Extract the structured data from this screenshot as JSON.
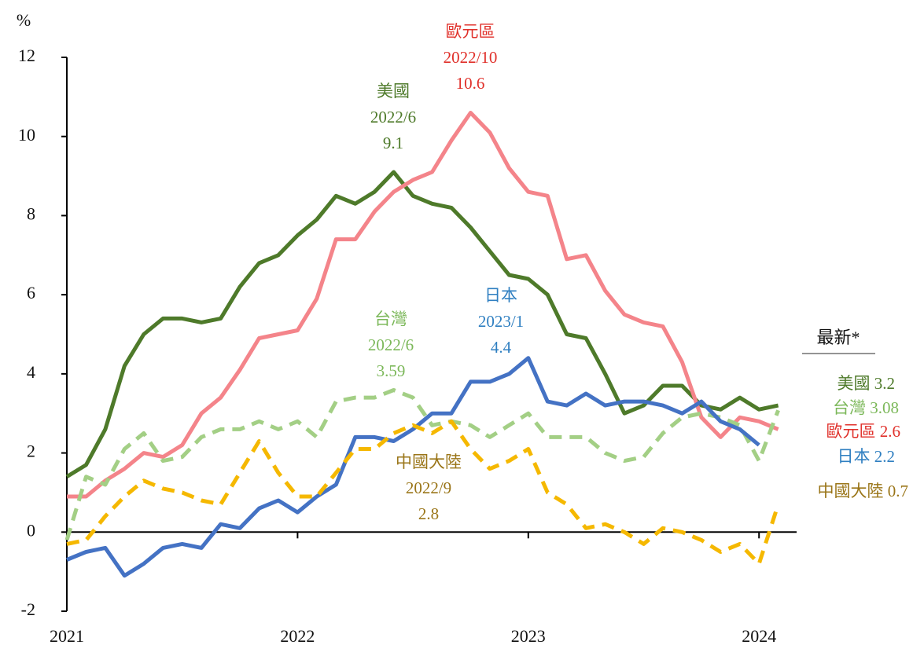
{
  "chart_data": {
    "type": "line",
    "y_label": "%",
    "categories": [
      "2021",
      null,
      null,
      null,
      null,
      null,
      null,
      null,
      null,
      null,
      null,
      null,
      "2022",
      null,
      null,
      null,
      null,
      null,
      null,
      null,
      null,
      null,
      null,
      null,
      "2023",
      null,
      null,
      null,
      null,
      null,
      null,
      null,
      null,
      null,
      null,
      null,
      "2024",
      null
    ],
    "ylim": [
      -2,
      12
    ],
    "yticks": [
      -2,
      0,
      2,
      4,
      6,
      8,
      10,
      12
    ],
    "series": [
      {
        "name": "美國",
        "color": "#4e7a2a",
        "style": "solid",
        "values": [
          1.4,
          1.7,
          2.6,
          4.2,
          5.0,
          5.4,
          5.4,
          5.3,
          5.4,
          6.2,
          6.8,
          7.0,
          7.5,
          7.9,
          8.5,
          8.3,
          8.6,
          9.1,
          8.5,
          8.3,
          8.2,
          7.7,
          7.1,
          6.5,
          6.4,
          6.0,
          5.0,
          4.9,
          4.0,
          3.0,
          3.2,
          3.7,
          3.7,
          3.2,
          3.1,
          3.4,
          3.1,
          3.2
        ]
      },
      {
        "name": "歐元區",
        "color": "#f4848a",
        "style": "solid",
        "values": [
          0.9,
          0.9,
          1.3,
          1.6,
          2.0,
          1.9,
          2.2,
          3.0,
          3.4,
          4.1,
          4.9,
          5.0,
          5.1,
          5.9,
          7.4,
          7.4,
          8.1,
          8.6,
          8.9,
          9.1,
          9.9,
          10.6,
          10.1,
          9.2,
          8.6,
          8.5,
          6.9,
          7.0,
          6.1,
          5.5,
          5.3,
          5.2,
          4.3,
          2.9,
          2.4,
          2.9,
          2.8,
          2.6
        ]
      },
      {
        "name": "台灣",
        "color": "#a3cf85",
        "style": "dashed",
        "values": [
          -0.2,
          1.4,
          1.2,
          2.1,
          2.5,
          1.8,
          1.9,
          2.4,
          2.6,
          2.6,
          2.8,
          2.6,
          2.8,
          2.4,
          3.3,
          3.4,
          3.4,
          3.59,
          3.4,
          2.7,
          2.8,
          2.7,
          2.4,
          2.7,
          3.0,
          2.4,
          2.4,
          2.4,
          2.0,
          1.8,
          1.9,
          2.5,
          2.9,
          3.0,
          2.9,
          2.7,
          1.8,
          3.08
        ]
      },
      {
        "name": "日本",
        "color": "#4472c4",
        "style": "solid",
        "values": [
          -0.7,
          -0.5,
          -0.4,
          -1.1,
          -0.8,
          -0.4,
          -0.3,
          -0.4,
          0.2,
          0.1,
          0.6,
          0.8,
          0.5,
          0.9,
          1.2,
          2.4,
          2.4,
          2.3,
          2.6,
          3.0,
          3.0,
          3.8,
          3.8,
          4.0,
          4.4,
          3.3,
          3.2,
          3.5,
          3.2,
          3.3,
          3.3,
          3.2,
          3.0,
          3.3,
          2.8,
          2.6,
          2.2,
          null
        ]
      },
      {
        "name": "中國大陸",
        "color": "#f5b800",
        "style": "dashed",
        "values": [
          -0.3,
          -0.2,
          0.4,
          0.9,
          1.3,
          1.1,
          1.0,
          0.8,
          0.7,
          1.5,
          2.3,
          1.5,
          0.9,
          0.9,
          1.5,
          2.1,
          2.1,
          2.5,
          2.7,
          2.5,
          2.8,
          2.1,
          1.6,
          1.8,
          2.1,
          1.0,
          0.7,
          0.1,
          0.2,
          0.0,
          -0.3,
          0.1,
          0.0,
          -0.2,
          -0.5,
          -0.3,
          -0.8,
          0.7
        ]
      }
    ],
    "peaks": [
      {
        "lines": [
          "美國",
          "2022/6",
          "9.1"
        ],
        "color": "#4e7a2a"
      },
      {
        "lines": [
          "歐元區",
          "2022/10",
          "10.6"
        ],
        "color": "#e0302a"
      },
      {
        "lines": [
          "台灣",
          "2022/6",
          "3.59"
        ],
        "color": "#7cb85a"
      },
      {
        "lines": [
          "日本",
          "2023/1",
          "4.4"
        ],
        "color": "#2f7fc1"
      },
      {
        "lines": [
          "中國大陸",
          "2022/9",
          "2.8"
        ],
        "color": "#9a7518"
      }
    ],
    "latest_title": "最新*",
    "latest": [
      {
        "text": "美國 3.2",
        "color": "#4e7a2a"
      },
      {
        "text": "台灣 3.08",
        "color": "#7cb85a"
      },
      {
        "text": "歐元區 2.6",
        "color": "#e0302a"
      },
      {
        "text": "日本 2.2",
        "color": "#2f7fc1"
      },
      {
        "text": "中國大陸 0.7",
        "color": "#9a7518"
      }
    ]
  }
}
